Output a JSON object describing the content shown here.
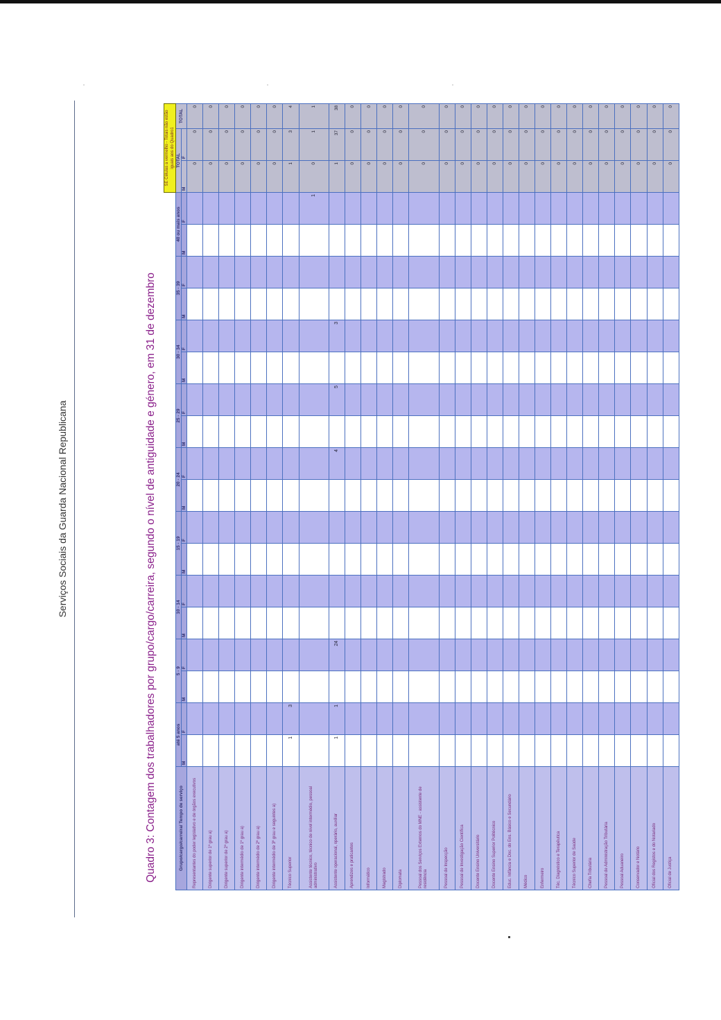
{
  "page": {
    "header": "Serviços Sociais da Guarda Nacional Republicana",
    "title": "Quadro 3: Contagem dos trabalhadores por grupo/cargo/carreira, segundo o nível de antiguidade e género, em 31 de dezembro"
  },
  "table": {
    "corner_label": "Grupo/cargo/carreira/ Tempo de serviço",
    "note": "SE Células a vermelho - Totais não estão iguais aos do Quadro1",
    "age_groups": [
      "até 5 anos",
      "5 - 9",
      "10 - 14",
      "15 - 19",
      "20 - 24",
      "25 - 29",
      "30 - 34",
      "35 - 39",
      "40 ou mais anos"
    ],
    "total_label": "TOTAL",
    "m_label": "M",
    "f_label": "F",
    "rows": [
      {
        "label": "Representantes do poder legislativo e de órgãos executivos",
        "cells": [
          "",
          "",
          "",
          "",
          "",
          "",
          "",
          "",
          "",
          "",
          "",
          "",
          "",
          "",
          "",
          "",
          "",
          ""
        ],
        "tm": "0",
        "tf": "0",
        "tt": "0"
      },
      {
        "label": "Dirigente superior de 1º grau a)",
        "cells": [
          "",
          "",
          "",
          "",
          "",
          "",
          "",
          "",
          "",
          "",
          "",
          "",
          "",
          "",
          "",
          "",
          "",
          ""
        ],
        "tm": "0",
        "tf": "0",
        "tt": "0"
      },
      {
        "label": "Dirigente superior de 2º grau a)",
        "cells": [
          "",
          "",
          "",
          "",
          "",
          "",
          "",
          "",
          "",
          "",
          "",
          "",
          "",
          "",
          "",
          "",
          "",
          ""
        ],
        "tm": "0",
        "tf": "0",
        "tt": "0"
      },
      {
        "label": "Dirigente intermédio de 1º grau a)",
        "cells": [
          "",
          "",
          "",
          "",
          "",
          "",
          "",
          "",
          "",
          "",
          "",
          "",
          "",
          "",
          "",
          "",
          "",
          ""
        ],
        "tm": "0",
        "tf": "0",
        "tt": "0"
      },
      {
        "label": "Dirigente intermédio de 2º grau a)",
        "cells": [
          "",
          "",
          "",
          "",
          "",
          "",
          "",
          "",
          "",
          "",
          "",
          "",
          "",
          "",
          "",
          "",
          "",
          ""
        ],
        "tm": "0",
        "tf": "0",
        "tt": "0"
      },
      {
        "label": "Dirigente intermédio de 3º grau e seguintes a)",
        "cells": [
          "",
          "",
          "",
          "",
          "",
          "",
          "",
          "",
          "",
          "",
          "",
          "",
          "",
          "",
          "",
          "",
          "",
          ""
        ],
        "tm": "0",
        "tf": "0",
        "tt": "0"
      },
      {
        "label": "Técnico Superior",
        "cells": [
          "1",
          "3",
          "",
          "",
          "",
          "",
          "",
          "",
          "",
          "",
          "",
          "",
          "",
          "",
          "",
          "",
          "",
          ""
        ],
        "tm": "1",
        "tf": "3",
        "tt": "4"
      },
      {
        "label": "Assistente técnico, técnico de nível intermédio, pessoal administrativo",
        "cells": [
          "",
          "",
          "",
          "",
          "",
          "",
          "",
          "",
          "",
          "",
          "",
          "",
          "",
          "",
          "",
          "",
          "",
          "1"
        ],
        "tm": "0",
        "tf": "1",
        "tt": "1"
      },
      {
        "label": "Assistente operacional, operário, auxiliar",
        "cells": [
          "1",
          "1",
          "",
          "24",
          "",
          "",
          "",
          "",
          "",
          "4",
          "",
          "5",
          "",
          "3",
          "",
          "",
          "",
          ""
        ],
        "tm": "1",
        "tf": "37",
        "tt": "38"
      },
      {
        "label": "Aprendizes e praticantes",
        "cells": [
          "",
          "",
          "",
          "",
          "",
          "",
          "",
          "",
          "",
          "",
          "",
          "",
          "",
          "",
          "",
          "",
          "",
          ""
        ],
        "tm": "0",
        "tf": "0",
        "tt": "0"
      },
      {
        "label": "Informático",
        "cells": [
          "",
          "",
          "",
          "",
          "",
          "",
          "",
          "",
          "",
          "",
          "",
          "",
          "",
          "",
          "",
          "",
          "",
          ""
        ],
        "tm": "0",
        "tf": "0",
        "tt": "0"
      },
      {
        "label": "Magistrado",
        "cells": [
          "",
          "",
          "",
          "",
          "",
          "",
          "",
          "",
          "",
          "",
          "",
          "",
          "",
          "",
          "",
          "",
          "",
          ""
        ],
        "tm": "0",
        "tf": "0",
        "tt": "0"
      },
      {
        "label": "Diplomata",
        "cells": [
          "",
          "",
          "",
          "",
          "",
          "",
          "",
          "",
          "",
          "",
          "",
          "",
          "",
          "",
          "",
          "",
          "",
          ""
        ],
        "tm": "0",
        "tf": "0",
        "tt": "0"
      },
      {
        "label": "Pessoal dos Serviços Externos do MNE - assistente de residência",
        "cells": [
          "",
          "",
          "",
          "",
          "",
          "",
          "",
          "",
          "",
          "",
          "",
          "",
          "",
          "",
          "",
          "",
          "",
          ""
        ],
        "tm": "0",
        "tf": "0",
        "tt": "0"
      },
      {
        "label": "Pessoal de Inspecção",
        "cells": [
          "",
          "",
          "",
          "",
          "",
          "",
          "",
          "",
          "",
          "",
          "",
          "",
          "",
          "",
          "",
          "",
          "",
          ""
        ],
        "tm": "0",
        "tf": "0",
        "tt": "0"
      },
      {
        "label": "Pessoal de Investigação Científica",
        "cells": [
          "",
          "",
          "",
          "",
          "",
          "",
          "",
          "",
          "",
          "",
          "",
          "",
          "",
          "",
          "",
          "",
          "",
          ""
        ],
        "tm": "0",
        "tf": "0",
        "tt": "0"
      },
      {
        "label": "Docente Ensino Universitário",
        "cells": [
          "",
          "",
          "",
          "",
          "",
          "",
          "",
          "",
          "",
          "",
          "",
          "",
          "",
          "",
          "",
          "",
          "",
          ""
        ],
        "tm": "0",
        "tf": "0",
        "tt": "0"
      },
      {
        "label": "Docente Ensino Superior Politécnico",
        "cells": [
          "",
          "",
          "",
          "",
          "",
          "",
          "",
          "",
          "",
          "",
          "",
          "",
          "",
          "",
          "",
          "",
          "",
          ""
        ],
        "tm": "0",
        "tf": "0",
        "tt": "0"
      },
      {
        "label": "Educ. Infância e Doc. do Ens. Básico e Secundário",
        "cells": [
          "",
          "",
          "",
          "",
          "",
          "",
          "",
          "",
          "",
          "",
          "",
          "",
          "",
          "",
          "",
          "",
          "",
          ""
        ],
        "tm": "0",
        "tf": "0",
        "tt": "0"
      },
      {
        "label": "Médico",
        "cells": [
          "",
          "",
          "",
          "",
          "",
          "",
          "",
          "",
          "",
          "",
          "",
          "",
          "",
          "",
          "",
          "",
          "",
          ""
        ],
        "tm": "0",
        "tf": "0",
        "tt": "0"
      },
      {
        "label": "Enfermeiro",
        "cells": [
          "",
          "",
          "",
          "",
          "",
          "",
          "",
          "",
          "",
          "",
          "",
          "",
          "",
          "",
          "",
          "",
          "",
          ""
        ],
        "tm": "0",
        "tf": "0",
        "tt": "0"
      },
      {
        "label": "Téc. Diagnóstico e Terapêutica",
        "cells": [
          "",
          "",
          "",
          "",
          "",
          "",
          "",
          "",
          "",
          "",
          "",
          "",
          "",
          "",
          "",
          "",
          "",
          ""
        ],
        "tm": "0",
        "tf": "0",
        "tt": "0"
      },
      {
        "label": "Técnico Superior de Saúde",
        "cells": [
          "",
          "",
          "",
          "",
          "",
          "",
          "",
          "",
          "",
          "",
          "",
          "",
          "",
          "",
          "",
          "",
          "",
          ""
        ],
        "tm": "0",
        "tf": "0",
        "tt": "0"
      },
      {
        "label": "Chefia Tributária",
        "cells": [
          "",
          "",
          "",
          "",
          "",
          "",
          "",
          "",
          "",
          "",
          "",
          "",
          "",
          "",
          "",
          "",
          "",
          ""
        ],
        "tm": "0",
        "tf": "0",
        "tt": "0"
      },
      {
        "label": "Pessoal de Administração Tributária",
        "cells": [
          "",
          "",
          "",
          "",
          "",
          "",
          "",
          "",
          "",
          "",
          "",
          "",
          "",
          "",
          "",
          "",
          "",
          ""
        ],
        "tm": "0",
        "tf": "0",
        "tt": "0"
      },
      {
        "label": "Pessoal Aduaneiro",
        "cells": [
          "",
          "",
          "",
          "",
          "",
          "",
          "",
          "",
          "",
          "",
          "",
          "",
          "",
          "",
          "",
          "",
          "",
          ""
        ],
        "tm": "0",
        "tf": "0",
        "tt": "0"
      },
      {
        "label": "Conservador e Notário",
        "cells": [
          "",
          "",
          "",
          "",
          "",
          "",
          "",
          "",
          "",
          "",
          "",
          "",
          "",
          "",
          "",
          "",
          "",
          ""
        ],
        "tm": "0",
        "tf": "0",
        "tt": "0"
      },
      {
        "label": "Oficial dos Registos e do Notariado",
        "cells": [
          "",
          "",
          "",
          "",
          "",
          "",
          "",
          "",
          "",
          "",
          "",
          "",
          "",
          "",
          "",
          "",
          "",
          ""
        ],
        "tm": "0",
        "tf": "0",
        "tt": "0"
      },
      {
        "label": "Oficial de Justiça",
        "cells": [
          "",
          "",
          "",
          "",
          "",
          "",
          "",
          "",
          "",
          "",
          "",
          "",
          "",
          "",
          "",
          "",
          "",
          ""
        ],
        "tm": "0",
        "tf": "0",
        "tt": "0"
      }
    ]
  }
}
